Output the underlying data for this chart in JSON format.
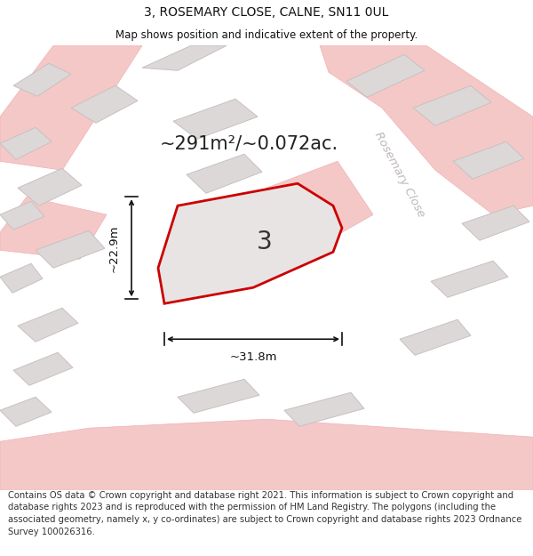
{
  "title": "3, ROSEMARY CLOSE, CALNE, SN11 0UL",
  "subtitle": "Map shows position and indicative extent of the property.",
  "area_text": "~291m²/~0.072ac.",
  "plot_number": "3",
  "dim_width": "~31.8m",
  "dim_height": "~22.9m",
  "street_label": "Rosemary Close",
  "footer_text": "Contains OS data © Crown copyright and database right 2021. This information is subject to Crown copyright and database rights 2023 and is reproduced with the permission of HM Land Registry. The polygons (including the associated geometry, namely x, y co-ordinates) are subject to Crown copyright and database rights 2023 Ordnance Survey 100026316.",
  "bg_color": "#ffffff",
  "map_bg": "#f7f2f2",
  "plot_fill": "#e8e4e4",
  "plot_stroke": "#cc0000",
  "road_color": "#f5c8c8",
  "road_edge": "#f0b0b0",
  "building_color": "#ddd8d8",
  "building_stroke": "#c8c0c0",
  "street_color": "#c0b8b8",
  "title_fontsize": 10,
  "subtitle_fontsize": 8.5,
  "footer_fontsize": 7.2,
  "area_fontsize": 15,
  "plot_label_fontsize": 20,
  "dim_fontsize": 9.5,
  "street_fontsize": 9.5
}
